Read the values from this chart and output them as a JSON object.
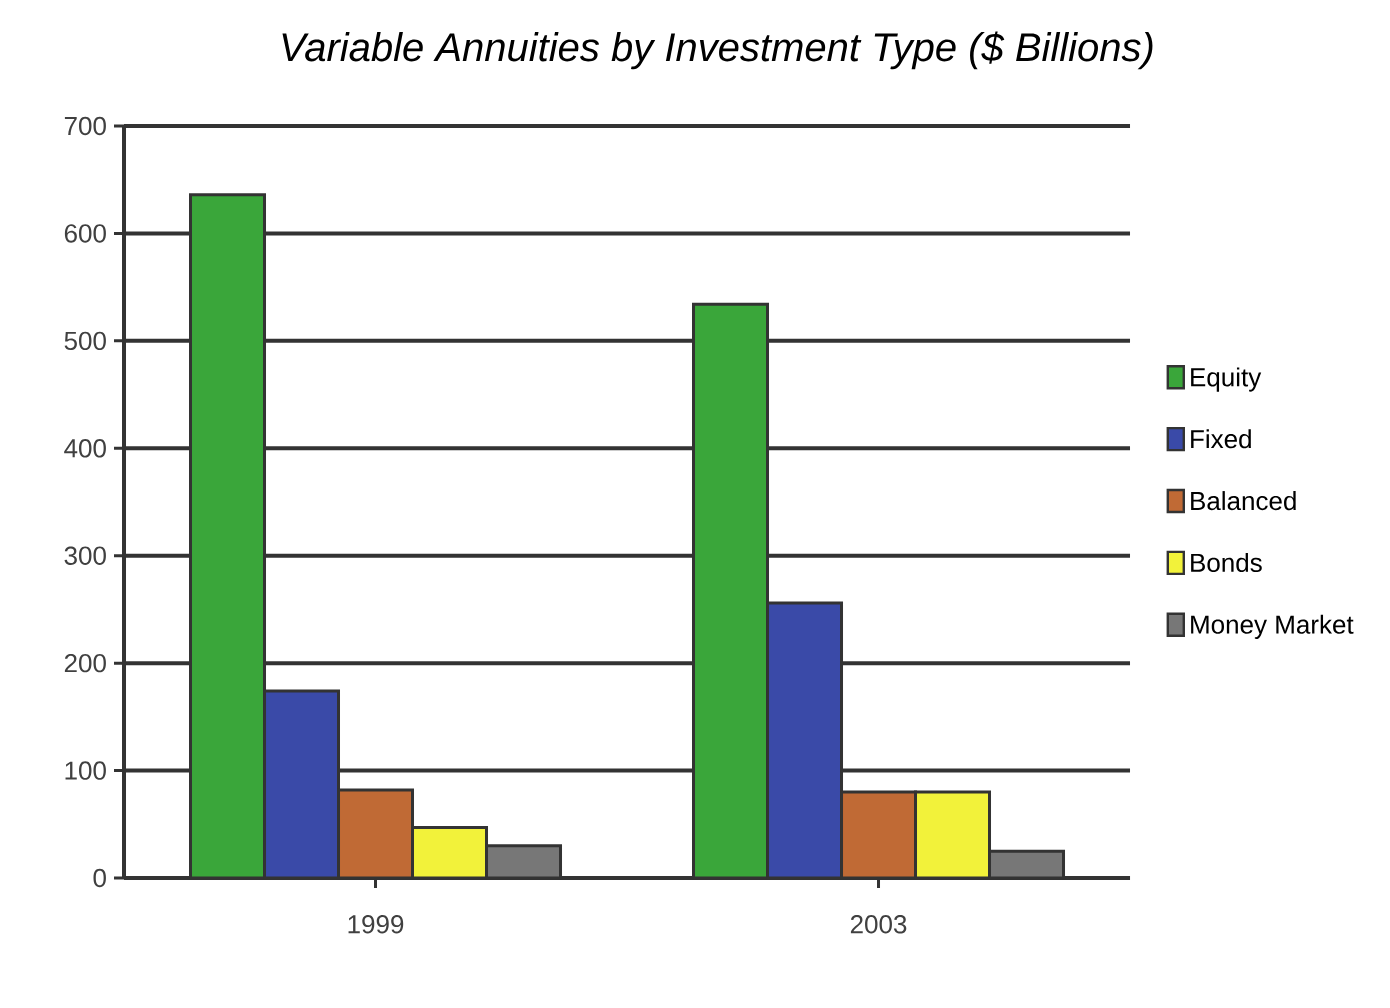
{
  "chart_data": {
    "type": "bar",
    "title": "Variable Annuities by Investment Type ($ Billions)",
    "categories": [
      "1999",
      "2003"
    ],
    "series": [
      {
        "name": "Equity",
        "color": "#3aa63a",
        "values": [
          636,
          534
        ]
      },
      {
        "name": "Fixed",
        "color": "#3a4aa8",
        "values": [
          174,
          256
        ]
      },
      {
        "name": "Balanced",
        "color": "#c06a35",
        "values": [
          82,
          80
        ]
      },
      {
        "name": "Bonds",
        "color": "#f2f23a",
        "values": [
          47,
          80
        ]
      },
      {
        "name": "Money Market",
        "color": "#777777",
        "values": [
          30,
          25
        ]
      }
    ],
    "ylim": [
      0,
      700
    ],
    "yticks": [
      0,
      100,
      200,
      300,
      400,
      500,
      600,
      700
    ],
    "grid": "y",
    "legend": "right"
  }
}
